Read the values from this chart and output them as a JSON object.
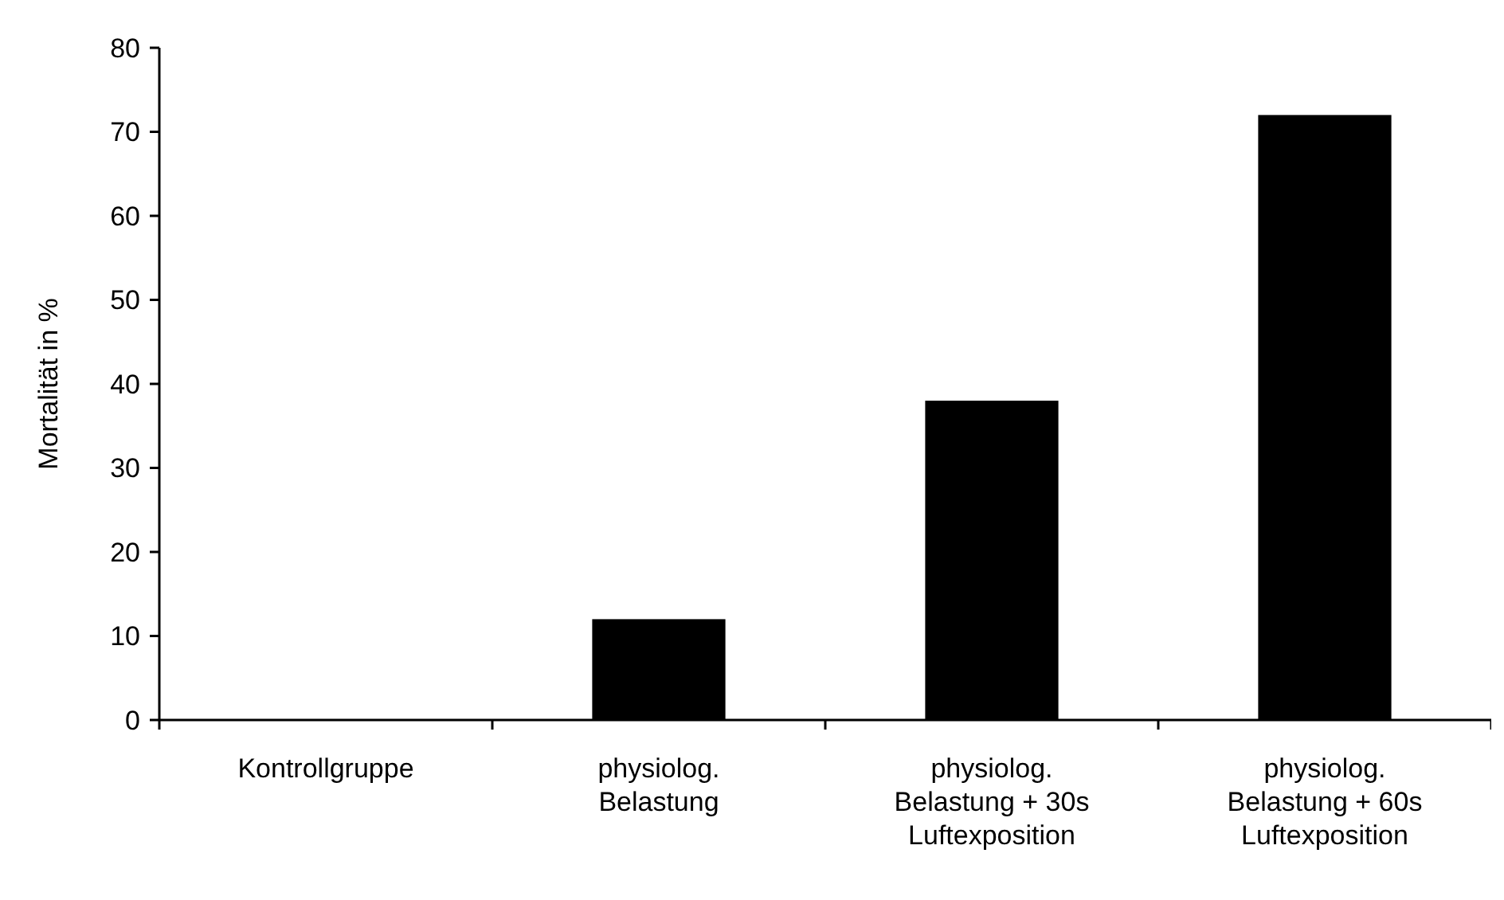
{
  "chart_data": {
    "type": "bar",
    "ylabel": "Mortalität in %",
    "categories": [
      "Kontrollgruppe",
      "physiolog. Belastung",
      "physiolog. Belastung + 30s Luftexposition",
      "physiolog. Belastung + 60s Luftexposition"
    ],
    "values": [
      0,
      12,
      38,
      72
    ],
    "color": "#000000",
    "ylim": [
      0,
      80
    ],
    "yticks": [
      0,
      10,
      20,
      30,
      40,
      50,
      60,
      70,
      80
    ],
    "grid": false
  }
}
